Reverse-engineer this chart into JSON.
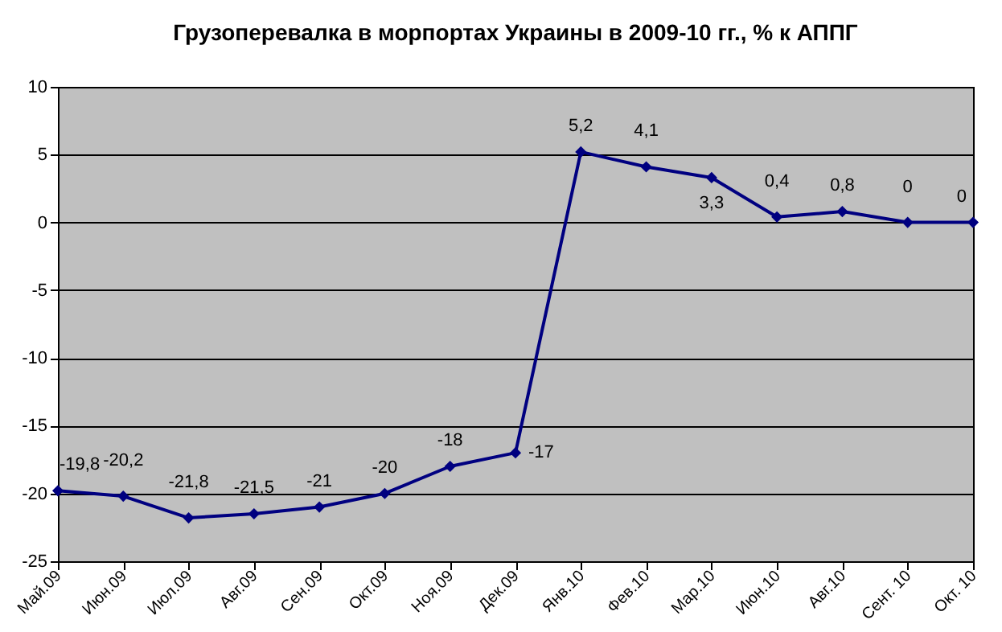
{
  "chart_data": {
    "type": "line",
    "title": "Грузоперевалка в морпортах Украины в 2009-10 гг., % к АППГ",
    "categories": [
      "Май.09",
      "Июн.09",
      "Июл.09",
      "Авг.09",
      "Сен.09",
      "Окт.09",
      "Ноя.09",
      "Дек.09",
      "Янв.10",
      "Фев.10",
      "Мар.10",
      "Июн.10",
      "Авг.10",
      "Сент. 10",
      "Окт. 10"
    ],
    "series": [
      {
        "color": "#000080",
        "values": [
          -19.8,
          -20.2,
          -21.8,
          -21.5,
          -21,
          -20,
          -18,
          -17,
          5.2,
          4.1,
          3.3,
          0.4,
          0.8,
          0,
          0
        ],
        "value_labels": [
          "-19,8",
          "-20,2",
          "-21,8",
          "-21,5",
          "-21",
          "-20",
          "-18",
          "-17",
          "5,2",
          "4,1",
          "3,3",
          "0,4",
          "0,8",
          "0",
          "0"
        ]
      }
    ],
    "ylim": [
      -25,
      10
    ],
    "yticks": [
      -25,
      -20,
      -15,
      -10,
      -5,
      0,
      5,
      10
    ],
    "grid": "y",
    "marker": "diamond",
    "line_style": "solid"
  }
}
